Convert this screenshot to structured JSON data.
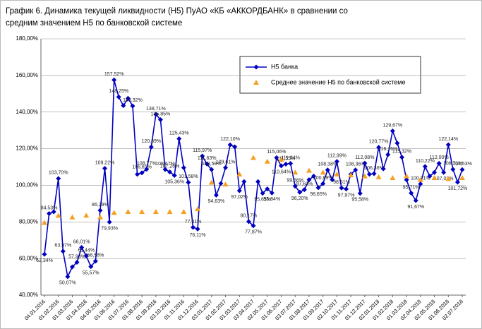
{
  "chart_data": {
    "type": "line",
    "title": [
      "График 6.  Динамика текущей ликвидности (Н5) ПуАО «КБ «АККОРДБАНК»  в сравнении со",
      "средним значением Н5 по банковской системе"
    ],
    "categories": [
      "04.01.2016",
      null,
      null,
      "01.02.2016",
      null,
      null,
      "01.03.2016",
      null,
      null,
      "01.04.2016",
      null,
      null,
      "04.05.2016",
      null,
      null,
      "01.06.2016",
      null,
      null,
      "01.07.2016",
      null,
      null,
      "01.08.2016",
      null,
      null,
      "01.09.2016",
      null,
      null,
      "03.10.2016",
      null,
      null,
      "01.11.2016",
      null,
      null,
      "01.12.2016",
      null,
      null,
      "03.01.2017",
      null,
      null,
      "01.02.2017",
      null,
      null,
      "01.03.2017",
      null,
      null,
      "03.04.2017",
      null,
      null,
      "02.05.2017",
      null,
      null,
      "01.06.2017",
      null,
      null,
      "03.07.2017",
      null,
      null,
      "01.08.2017",
      null,
      null,
      "01.09.2017",
      null,
      null,
      "02.10.2017",
      null,
      null,
      "01.11.2017",
      null,
      null,
      "01.12.2017",
      null,
      null,
      "02.01.2018",
      null,
      null,
      "01.02.2018",
      null,
      null,
      "01.03.2018",
      null,
      null,
      "02.04.2018",
      null,
      null,
      "02.05.2018",
      null,
      null,
      "01.06.2018",
      null,
      null,
      "02.07.2018"
    ],
    "series": [
      {
        "name": "Н5 банка",
        "color": "#0000c0",
        "marker": "diamond",
        "values": [
          62.34,
          84.53,
          85.5,
          103.7,
          63.97,
          50.07,
          55.41,
          57.93,
          66.01,
          61.44,
          55.57,
          58.58,
          86.29,
          109.22,
          79.93,
          157.52,
          148.25,
          143.5,
          147.5,
          143.32,
          106.0,
          106.81,
          108.77,
          120.89,
          138.71,
          135.85,
          108.67,
          107.26,
          105.36,
          125.43,
          109.6,
          101.58,
          77.01,
          76.11,
          115.97,
          111.63,
          108.58,
          94.63,
          101.0,
          109.61,
          122.1,
          121.0,
          97.02,
          102.0,
          80.17,
          77.87,
          102.0,
          95.65,
          98.0,
          95.84,
          115.06,
          110.64,
          111.55,
          111.94,
          99.56,
          96.2,
          97.63,
          103.0,
          105.0,
          98.65,
          100.89,
          108.38,
          103.0,
          112.99,
          98.51,
          97.97,
          106.0,
          108.36,
          95.58,
          112.08,
          106.0,
          106.36,
          120.77,
          109.0,
          116.76,
          129.67,
          123.0,
          115.32,
          103.0,
          95.71,
          91.67,
          100.71,
          110.22,
          105.0,
          107.0,
          112.0,
          107.03,
          122.14,
          108.71,
          101.72,
          108.53
        ],
        "value_labels": [
          "62,34%",
          "84,53%",
          null,
          "103,70%",
          "63,97%",
          "50,07%",
          null,
          "57,93%",
          "66,01%",
          "61,44%",
          "55,57%",
          "58,58%",
          "86,29%",
          "109,22%",
          "79,93%",
          "157,52%",
          "148,25%",
          null,
          null,
          "143,32%",
          null,
          "106,81%",
          "108,77%",
          "120,89%",
          "138,71%",
          "135,85%",
          "108,67%",
          "107,26%",
          "105,36%",
          "125,43%",
          null,
          "101,58%",
          "77,01%",
          "76,11%",
          "115,97%",
          "111,63%",
          "108,58%",
          "94,63%",
          null,
          "109,61%",
          "122,10%",
          null,
          "97,02%",
          null,
          "80,17%",
          "77,87%",
          null,
          "95,65%",
          null,
          "95,84%",
          "115,06%",
          "110,64%",
          "111,55%",
          "111,94%",
          "99,56%",
          "96,20%",
          "97,63%",
          null,
          null,
          "98,65%",
          "100,89%",
          "108,38%",
          null,
          "112,99%",
          "98,51%",
          "97,97%",
          null,
          "108,36%",
          "95,58%",
          "112,08%",
          null,
          "106,36%",
          "120,77%",
          null,
          "116,76%",
          "129,67%",
          null,
          "115,32%",
          null,
          "95,71%",
          "91,67%",
          "100,71%",
          "110,22%",
          null,
          null,
          "112,00%",
          "107,03%",
          "122,14%",
          "108,71%",
          "101,72%",
          "108,53%"
        ]
      },
      {
        "name": "Среднее значение Н5 по банковской системе",
        "color": "#f5a020",
        "marker": "triangle",
        "values": [
          79.5,
          null,
          null,
          83.4,
          null,
          null,
          82.5,
          null,
          null,
          83.5,
          null,
          null,
          82.5,
          null,
          null,
          85,
          null,
          null,
          85.5,
          null,
          null,
          85.5,
          null,
          null,
          85.5,
          null,
          null,
          85.5,
          null,
          null,
          85.5,
          null,
          null,
          87,
          null,
          null,
          101.5,
          null,
          null,
          100.5,
          null,
          null,
          106,
          null,
          null,
          115,
          null,
          null,
          113,
          null,
          null,
          114,
          null,
          null,
          107,
          null,
          null,
          108,
          null,
          null,
          107,
          null,
          null,
          106,
          null,
          null,
          105.5,
          null,
          null,
          105,
          null,
          null,
          104.5,
          null,
          null,
          104,
          null,
          null,
          105,
          null,
          null,
          103,
          null,
          null,
          104,
          null,
          null,
          103.5,
          null,
          null,
          104
        ]
      }
    ],
    "ylim": [
      40,
      180
    ],
    "yticks": [
      {
        "value": 40,
        "label": "40,00%"
      },
      {
        "value": 60,
        "label": "60,00%"
      },
      {
        "value": 80,
        "label": "80,00%"
      },
      {
        "value": 100,
        "label": "100,00%"
      },
      {
        "value": 120,
        "label": "120,00%"
      },
      {
        "value": 140,
        "label": "140,00%"
      },
      {
        "value": 160,
        "label": "160,00%"
      },
      {
        "value": 180,
        "label": "180,00%"
      }
    ],
    "grid": true
  }
}
